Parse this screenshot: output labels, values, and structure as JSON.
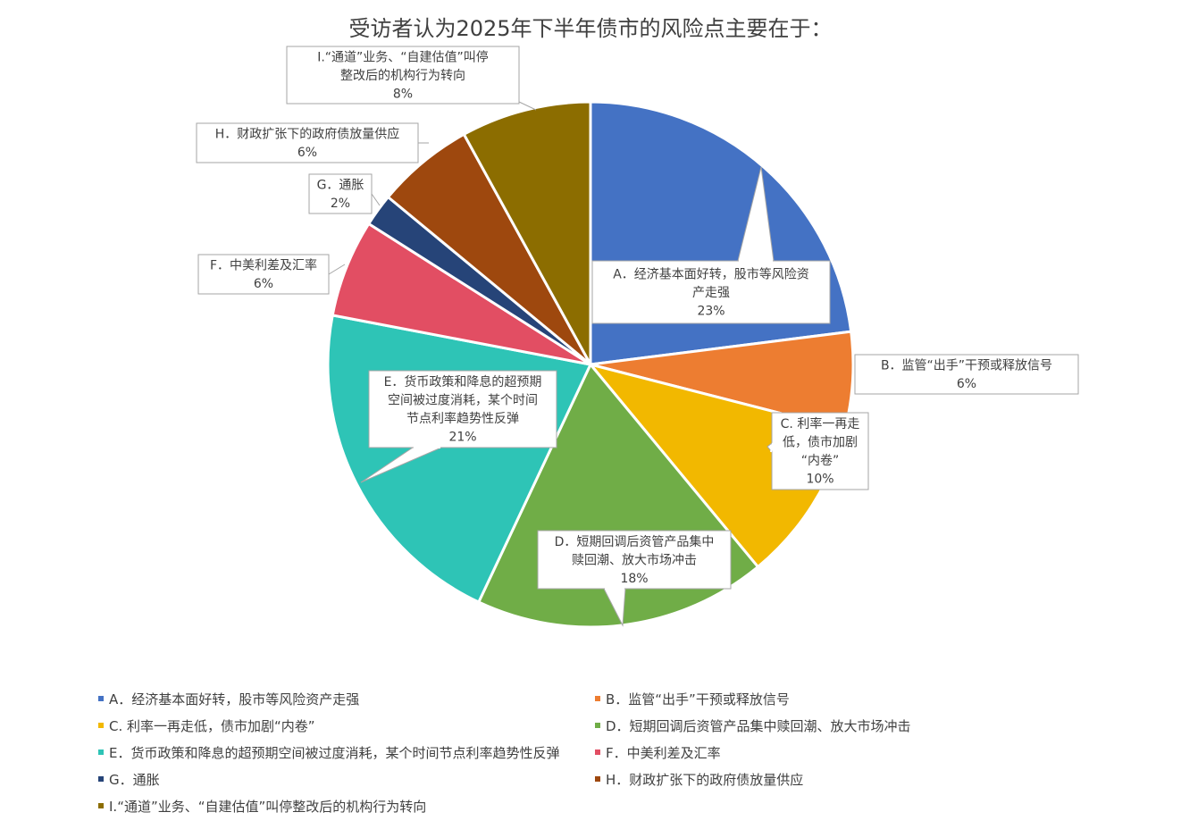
{
  "chart_data": {
    "type": "pie",
    "title": "受访者认为2025年下半年债市的风险点主要在于：",
    "legend_position": "bottom",
    "slices": [
      {
        "legend": "A．经济基本面好转，股市等风险资产走强",
        "label_lines": [
          "A．经济基本面好转，股市等风险资",
          "产走强"
        ],
        "value": 23,
        "value_label": "23%",
        "color": "#4472C4"
      },
      {
        "legend": "B．监管“出手”干预或释放信号",
        "label_lines": [
          "B．监管“出手”干预或释放信号"
        ],
        "value": 6,
        "value_label": "6%",
        "color": "#ED7D31"
      },
      {
        "legend": "C. 利率一再走低，债市加剧“内卷”",
        "label_lines": [
          "C. 利率一再走",
          "低，债市加剧",
          "“内卷”"
        ],
        "value": 10,
        "value_label": "10%",
        "color": "#F2B800"
      },
      {
        "legend": "D．短期回调后资管产品集中赎回潮、放大市场冲击",
        "label_lines": [
          "D．短期回调后资管产品集中",
          "赎回潮、放大市场冲击"
        ],
        "value": 18,
        "value_label": "18%",
        "color": "#70AD47"
      },
      {
        "legend": "E．货币政策和降息的超预期空间被过度消耗，某个时间节点利率趋势性反弹",
        "label_lines": [
          "E．货币政策和降息的超预期",
          "空间被过度消耗，某个时间",
          "节点利率趋势性反弹"
        ],
        "value": 21,
        "value_label": "21%",
        "color": "#2EC4B6"
      },
      {
        "legend": "F．中美利差及汇率",
        "label_lines": [
          "F．中美利差及汇率"
        ],
        "value": 6,
        "value_label": "6%",
        "color": "#E24E63"
      },
      {
        "legend": "G．通胀",
        "label_lines": [
          "G．通胀"
        ],
        "value": 2,
        "value_label": "2%",
        "color": "#264478"
      },
      {
        "legend": "H．财政扩张下的政府债放量供应",
        "label_lines": [
          "H．财政扩张下的政府债放量供应"
        ],
        "value": 6,
        "value_label": "6%",
        "color": "#9E480E"
      },
      {
        "legend": "I.“通道”业务、“自建估值”叫停整改后的机构行为转向",
        "label_lines": [
          "I.“通道”业务、“自建估值”叫停",
          "整改后的机构行为转向"
        ],
        "value": 8,
        "value_label": "8%",
        "color": "#8C6D00"
      }
    ]
  }
}
